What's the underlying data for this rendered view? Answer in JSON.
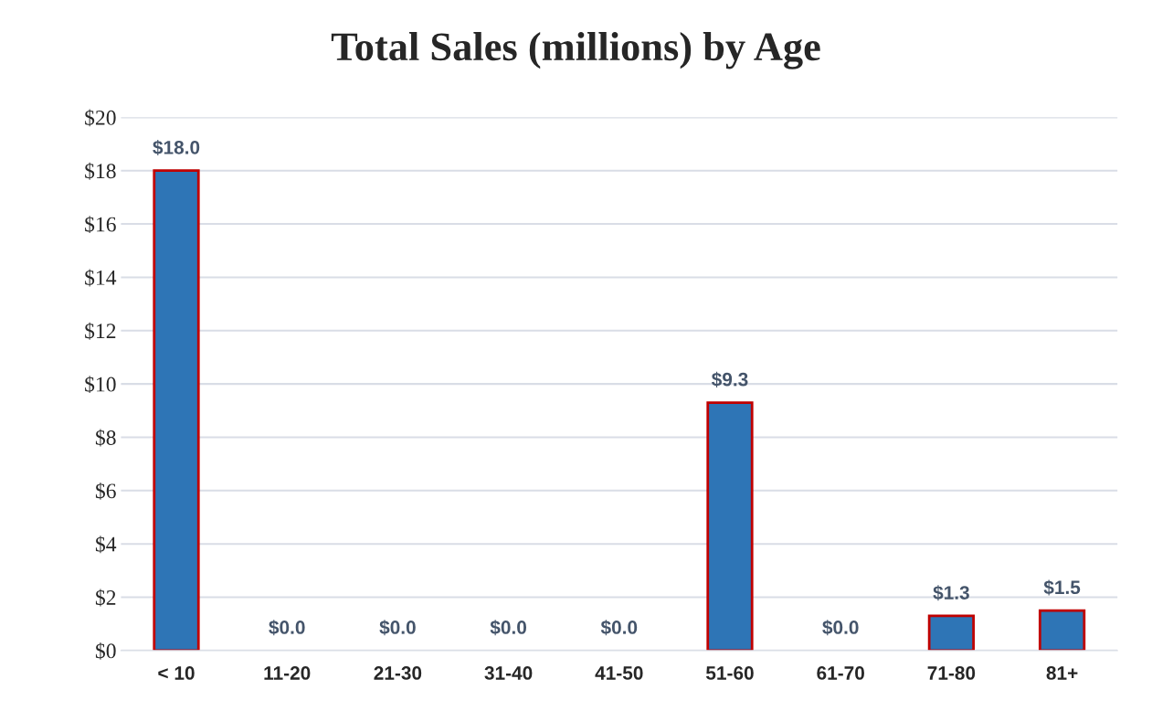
{
  "chart_data": {
    "type": "bar",
    "title": "Total Sales (millions) by Age",
    "categories": [
      "< 10",
      "11-20",
      "21-30",
      "31-40",
      "41-50",
      "51-60",
      "61-70",
      "71-80",
      "81+"
    ],
    "values": [
      18.0,
      0.0,
      0.0,
      0.0,
      0.0,
      9.3,
      0.0,
      1.3,
      1.5
    ],
    "value_labels": [
      "$18.0",
      "$0.0",
      "$0.0",
      "$0.0",
      "$0.0",
      "$9.3",
      "$0.0",
      "$1.3",
      "$1.5"
    ],
    "color": "#2e75b6",
    "ylim": [
      0,
      20
    ],
    "yticks": [
      {
        "value": 0,
        "label": "$0"
      },
      {
        "value": 2,
        "label": "$2"
      },
      {
        "value": 4,
        "label": "$4"
      },
      {
        "value": 6,
        "label": "$6"
      },
      {
        "value": 8,
        "label": "$8"
      },
      {
        "value": 10,
        "label": "$10"
      },
      {
        "value": 12,
        "label": "$12"
      },
      {
        "value": 14,
        "label": "$14"
      },
      {
        "value": 16,
        "label": "$16"
      },
      {
        "value": 18,
        "label": "$18"
      },
      {
        "value": 20,
        "label": "$20"
      }
    ],
    "grid": "y",
    "legend": false
  }
}
